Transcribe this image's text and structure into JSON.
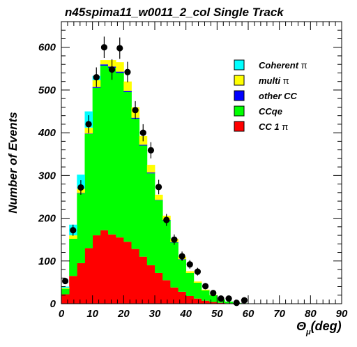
{
  "chart_data": {
    "type": "bar",
    "title": "n45spima11_w0011_2_col Single Track",
    "xlabel": "Θ",
    "xlabel_sub": "μ",
    "xlabel_unit": "(deg)",
    "ylabel": "Number of Events",
    "xlim": [
      0,
      90
    ],
    "ylim": [
      0,
      660
    ],
    "bin_width": 2.5,
    "x_ticks": [
      0,
      10,
      20,
      30,
      40,
      50,
      60,
      70,
      80,
      90
    ],
    "y_ticks": [
      0,
      100,
      200,
      300,
      400,
      500,
      600
    ],
    "stacked": true,
    "legend_position": "top-right",
    "bin_edges_start": [
      0,
      2.5,
      5,
      7.5,
      10,
      12.5,
      15,
      17.5,
      20,
      22.5,
      25,
      27.5,
      30,
      32.5,
      35,
      37.5,
      40,
      42.5,
      45,
      47.5,
      50,
      52.5,
      55,
      57.5
    ],
    "series": [
      {
        "name": "CC 1π",
        "label_text": "CC 1",
        "label_symbol": "π",
        "color": "#ff0000",
        "values": [
          22,
          65,
          95,
          130,
          160,
          172,
          162,
          155,
          145,
          128,
          110,
          90,
          72,
          55,
          38,
          28,
          18,
          12,
          7,
          4,
          2,
          1,
          0,
          0
        ]
      },
      {
        "name": "CCqe",
        "label_text": "CCqe",
        "label_symbol": "",
        "color": "#00ff00",
        "values": [
          13,
          87,
          163,
          267,
          345,
          385,
          390,
          385,
          350,
          305,
          260,
          215,
          170,
          140,
          105,
          75,
          54,
          37,
          24,
          16,
          8,
          4,
          2,
          1
        ]
      },
      {
        "name": "other CC",
        "label_text": "other CC",
        "label_symbol": "",
        "color": "#0000ff",
        "values": [
          0,
          0,
          1,
          1,
          2,
          3,
          3,
          3,
          3,
          2,
          2,
          2,
          1,
          1,
          1,
          1,
          0,
          0,
          0,
          0,
          0,
          0,
          0,
          0
        ]
      },
      {
        "name": "multi π",
        "label_text": "multi",
        "label_symbol": "π",
        "color": "#ffff00",
        "values": [
          2,
          8,
          10,
          14,
          16,
          10,
          15,
          22,
          22,
          25,
          20,
          18,
          12,
          10,
          8,
          6,
          4,
          3,
          2,
          1,
          0,
          0,
          0,
          0
        ]
      },
      {
        "name": "Coherent π",
        "label_text": "Coherent",
        "label_symbol": "π",
        "color": "#00ffff",
        "values": [
          3,
          25,
          33,
          38,
          10,
          0,
          0,
          0,
          0,
          0,
          0,
          0,
          0,
          0,
          0,
          0,
          0,
          0,
          0,
          0,
          0,
          0,
          0,
          0
        ]
      }
    ],
    "data_points": {
      "x": [
        1.25,
        3.75,
        6.25,
        8.75,
        11.25,
        13.75,
        16.25,
        18.75,
        21.25,
        23.75,
        26.25,
        28.75,
        31.25,
        33.75,
        36.25,
        38.75,
        41.25,
        43.75,
        46.25,
        48.75,
        51.25,
        53.75,
        56.25,
        58.75
      ],
      "y": [
        53,
        172,
        272,
        420,
        530,
        600,
        548,
        598,
        542,
        453,
        400,
        359,
        273,
        196,
        150,
        111,
        92,
        75,
        41,
        25,
        12,
        12,
        2,
        8
      ],
      "err": [
        7,
        13,
        17,
        21,
        23,
        25,
        24,
        25,
        24,
        21,
        20,
        19,
        17,
        14,
        12,
        11,
        10,
        9,
        7,
        5,
        4,
        4,
        2,
        3
      ]
    }
  }
}
